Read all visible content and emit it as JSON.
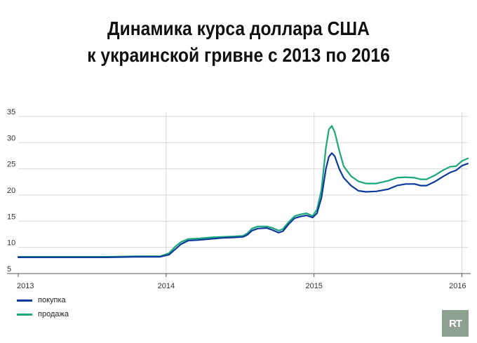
{
  "title_lines": [
    "Динамика курса доллара США",
    "к украинской гривне с 2013 по 2016"
  ],
  "logo_text": "RT",
  "colors": {
    "buy": "#0b3a9c",
    "sell": "#1aa77a",
    "grid": "#d9d9d9",
    "axis": "#555555"
  },
  "chart_data": {
    "type": "line",
    "title": "Динамика курса доллара США к украинской гривне с 2013 по 2016",
    "xlabel": "",
    "ylabel": "",
    "xlim": [
      2013.0,
      2016.04
    ],
    "ylim": [
      5,
      35
    ],
    "yticks": [
      5,
      10,
      15,
      20,
      25,
      30,
      35
    ],
    "xticks": [
      2013,
      2014,
      2015,
      2016
    ],
    "xtick_labels": [
      "2013",
      "2014",
      "2015",
      "2016"
    ],
    "grid": true,
    "legend_position": "bottom-left",
    "series": [
      {
        "name": "покупка",
        "color": "#0b3a9c",
        "points": [
          [
            2013.0,
            8.1
          ],
          [
            2013.2,
            8.1
          ],
          [
            2013.4,
            8.1
          ],
          [
            2013.6,
            8.1
          ],
          [
            2013.8,
            8.2
          ],
          [
            2013.96,
            8.2
          ],
          [
            2014.02,
            8.6
          ],
          [
            2014.06,
            9.6
          ],
          [
            2014.1,
            10.6
          ],
          [
            2014.15,
            11.3
          ],
          [
            2014.22,
            11.4
          ],
          [
            2014.3,
            11.6
          ],
          [
            2014.38,
            11.8
          ],
          [
            2014.46,
            11.9
          ],
          [
            2014.52,
            12.0
          ],
          [
            2014.55,
            12.4
          ],
          [
            2014.58,
            13.2
          ],
          [
            2014.62,
            13.6
          ],
          [
            2014.68,
            13.7
          ],
          [
            2014.72,
            13.3
          ],
          [
            2014.76,
            12.8
          ],
          [
            2014.79,
            13.1
          ],
          [
            2014.83,
            14.5
          ],
          [
            2014.87,
            15.6
          ],
          [
            2014.91,
            15.9
          ],
          [
            2014.95,
            16.1
          ],
          [
            2014.99,
            15.7
          ],
          [
            2015.02,
            16.5
          ],
          [
            2015.05,
            19.5
          ],
          [
            2015.08,
            25.0
          ],
          [
            2015.1,
            27.3
          ],
          [
            2015.12,
            28.0
          ],
          [
            2015.14,
            27.4
          ],
          [
            2015.17,
            25.0
          ],
          [
            2015.2,
            23.3
          ],
          [
            2015.25,
            21.8
          ],
          [
            2015.3,
            20.8
          ],
          [
            2015.35,
            20.6
          ],
          [
            2015.42,
            20.7
          ],
          [
            2015.5,
            21.1
          ],
          [
            2015.56,
            21.8
          ],
          [
            2015.62,
            22.1
          ],
          [
            2015.68,
            22.1
          ],
          [
            2015.72,
            21.8
          ],
          [
            2015.76,
            21.8
          ],
          [
            2015.82,
            22.6
          ],
          [
            2015.87,
            23.5
          ],
          [
            2015.92,
            24.3
          ],
          [
            2015.96,
            24.7
          ],
          [
            2016.0,
            25.6
          ],
          [
            2016.04,
            26.0
          ]
        ]
      },
      {
        "name": "продажа",
        "color": "#1aa77a",
        "points": [
          [
            2013.0,
            8.2
          ],
          [
            2013.2,
            8.2
          ],
          [
            2013.4,
            8.2
          ],
          [
            2013.6,
            8.2
          ],
          [
            2013.8,
            8.3
          ],
          [
            2013.96,
            8.3
          ],
          [
            2014.02,
            8.9
          ],
          [
            2014.06,
            10.1
          ],
          [
            2014.1,
            11.0
          ],
          [
            2014.15,
            11.6
          ],
          [
            2014.22,
            11.7
          ],
          [
            2014.3,
            11.9
          ],
          [
            2014.38,
            12.0
          ],
          [
            2014.46,
            12.1
          ],
          [
            2014.52,
            12.2
          ],
          [
            2014.55,
            12.7
          ],
          [
            2014.58,
            13.6
          ],
          [
            2014.62,
            14.0
          ],
          [
            2014.68,
            14.0
          ],
          [
            2014.72,
            13.7
          ],
          [
            2014.76,
            13.2
          ],
          [
            2014.79,
            13.5
          ],
          [
            2014.83,
            14.9
          ],
          [
            2014.87,
            16.0
          ],
          [
            2014.91,
            16.3
          ],
          [
            2014.95,
            16.5
          ],
          [
            2014.99,
            16.0
          ],
          [
            2015.02,
            17.2
          ],
          [
            2015.05,
            21.0
          ],
          [
            2015.08,
            29.0
          ],
          [
            2015.1,
            32.5
          ],
          [
            2015.12,
            33.2
          ],
          [
            2015.14,
            32.0
          ],
          [
            2015.17,
            28.5
          ],
          [
            2015.2,
            25.5
          ],
          [
            2015.25,
            23.6
          ],
          [
            2015.3,
            22.6
          ],
          [
            2015.35,
            22.2
          ],
          [
            2015.42,
            22.2
          ],
          [
            2015.5,
            22.7
          ],
          [
            2015.56,
            23.3
          ],
          [
            2015.62,
            23.4
          ],
          [
            2015.68,
            23.3
          ],
          [
            2015.72,
            23.0
          ],
          [
            2015.76,
            23.0
          ],
          [
            2015.82,
            23.8
          ],
          [
            2015.87,
            24.7
          ],
          [
            2015.92,
            25.4
          ],
          [
            2015.96,
            25.5
          ],
          [
            2016.0,
            26.5
          ],
          [
            2016.04,
            27.0
          ]
        ]
      }
    ]
  }
}
